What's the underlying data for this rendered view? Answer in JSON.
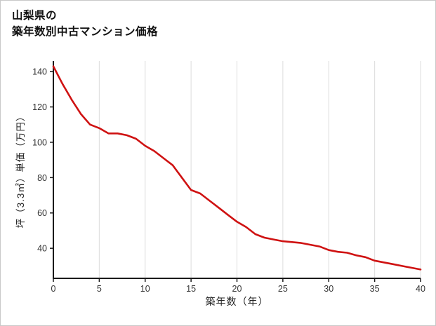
{
  "title": {
    "line1": "山梨県の",
    "line2": "築年数別中古マンション価格"
  },
  "chart_data": {
    "type": "line",
    "title": "山梨県の築年数別中古マンション価格",
    "xlabel": "築年数（年）",
    "ylabel": "坪（3.3㎡）単価（万円）",
    "x": [
      0,
      1,
      2,
      3,
      4,
      5,
      6,
      7,
      8,
      9,
      10,
      11,
      12,
      13,
      14,
      15,
      16,
      17,
      18,
      19,
      20,
      21,
      22,
      23,
      24,
      25,
      26,
      27,
      28,
      29,
      30,
      31,
      32,
      33,
      34,
      35,
      36,
      37,
      38,
      39,
      40
    ],
    "y": [
      143,
      133,
      124,
      116,
      110,
      108,
      105,
      105,
      104,
      102,
      98,
      95,
      91,
      87,
      80,
      73,
      71,
      67,
      63,
      59,
      55,
      52,
      48,
      46,
      45,
      44,
      43.5,
      43,
      42,
      41,
      39,
      38,
      37.5,
      36,
      35,
      33,
      32,
      31,
      30,
      29,
      28
    ],
    "xlim": [
      0,
      40
    ],
    "ylim": [
      23,
      146
    ],
    "xticks": [
      0,
      5,
      10,
      15,
      20,
      25,
      30,
      35,
      40
    ],
    "yticks": [
      40,
      60,
      80,
      100,
      120,
      140
    ],
    "grid": "vertical",
    "legend": "none",
    "colors": {
      "line": "#cf1212",
      "axis": "#1a1a1a",
      "grid": "#dcdcdc",
      "tick_text": "#333333"
    }
  }
}
